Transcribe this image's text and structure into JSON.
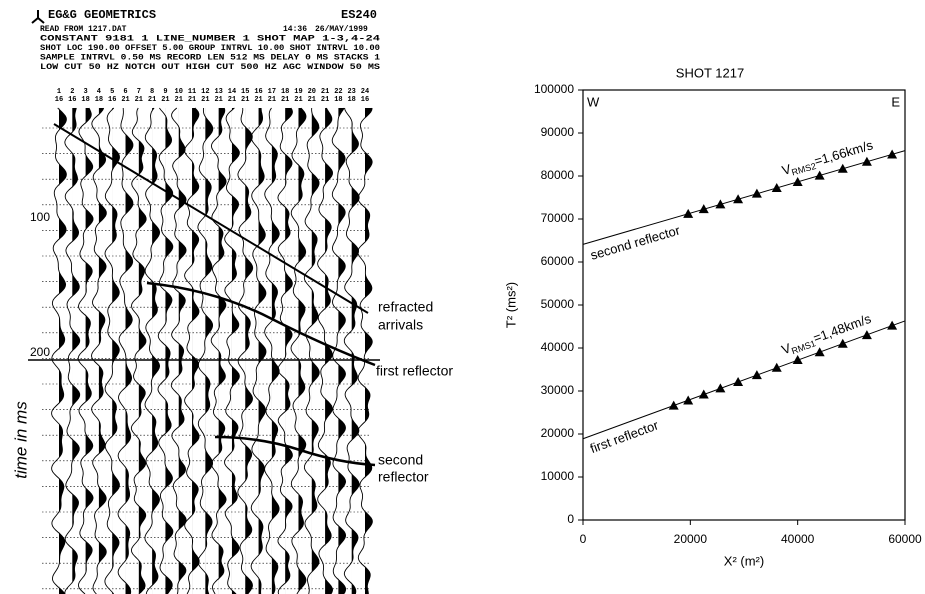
{
  "seismogram": {
    "brand": "EG&G GEOMETRICS",
    "time": "14:36",
    "date": "26/MAY/1999",
    "model": "ES240",
    "header_lines": [
      "READ FROM 1217.DAT",
      "CONSTANT      9181 1   LINE_NUMBER 1                 SHOT MAP    1-3,4-24",
      "SHOT LOC   190.00   OFFSET   5.00  GROUP INTRVL  10.00  SHOT INTRVL  10.00",
      "SAMPLE INTRVL 0.50 MS    RECORD LEN  512 MS    DELAY    0 MS    STACKS   1",
      "LOW CUT   50 HZ    NOTCH OUT      HIGH CUT  500 HZ      AGC WINDOW   50 MS"
    ],
    "trace_numbers": [
      "1",
      "2",
      "3",
      "4",
      "5",
      "6",
      "7",
      "8",
      "9",
      "10",
      "11",
      "12",
      "13",
      "14",
      "15",
      "16",
      "17",
      "18",
      "19",
      "20",
      "21",
      "22",
      "23",
      "24"
    ],
    "trace_gains": [
      "16",
      "16",
      "18",
      "18",
      "16",
      "21",
      "21",
      "21",
      "21",
      "21",
      "21",
      "21",
      "21",
      "21",
      "21",
      "21",
      "21",
      "21",
      "21",
      "21",
      "21",
      "18",
      "18",
      "16"
    ],
    "time_labels": [
      "100",
      "200"
    ],
    "time_axis_label": "time in ms",
    "annotations": {
      "refracted": [
        "refracted",
        "arrivals"
      ],
      "first": [
        "first reflector"
      ],
      "second": [
        "second",
        "reflector"
      ]
    }
  },
  "chart_data": {
    "type": "scatter",
    "title": "SHOT 1217",
    "x_label": "X² (m²)",
    "y_label": "T² (ms²)",
    "corner_labels": [
      "W",
      "E"
    ],
    "xlim": [
      0,
      60000
    ],
    "ylim": [
      0,
      100000
    ],
    "xticks": [
      0,
      20000,
      40000,
      60000
    ],
    "yticks": [
      0,
      10000,
      20000,
      30000,
      40000,
      50000,
      60000,
      70000,
      80000,
      90000,
      100000
    ],
    "series": [
      {
        "name": "second reflector",
        "color": "#000000",
        "velocity_label": [
          "V",
          "RMS2",
          "=1,66km/s"
        ],
        "x": [
          19600,
          22500,
          25600,
          28900,
          32400,
          36100,
          40000,
          44100,
          48400,
          52900,
          57600
        ],
        "values": [
          71200,
          72300,
          73400,
          74600,
          75900,
          77200,
          78600,
          80100,
          81700,
          83300,
          85000
        ],
        "fit": {
          "x": [
            0,
            60000
          ],
          "values": [
            64100,
            85900
          ]
        }
      },
      {
        "name": "first reflector",
        "color": "#000000",
        "velocity_label": [
          "V",
          "RMS1",
          "=1,48km/s"
        ],
        "x": [
          16900,
          19600,
          22500,
          25600,
          28900,
          32400,
          36100,
          40000,
          44100,
          48400,
          52900,
          57600
        ],
        "values": [
          26600,
          27800,
          29200,
          30600,
          32100,
          33700,
          35400,
          37200,
          39000,
          41000,
          43000,
          45200
        ],
        "fit": {
          "x": [
            0,
            60000
          ],
          "values": [
            18900,
            46300
          ]
        }
      }
    ]
  }
}
